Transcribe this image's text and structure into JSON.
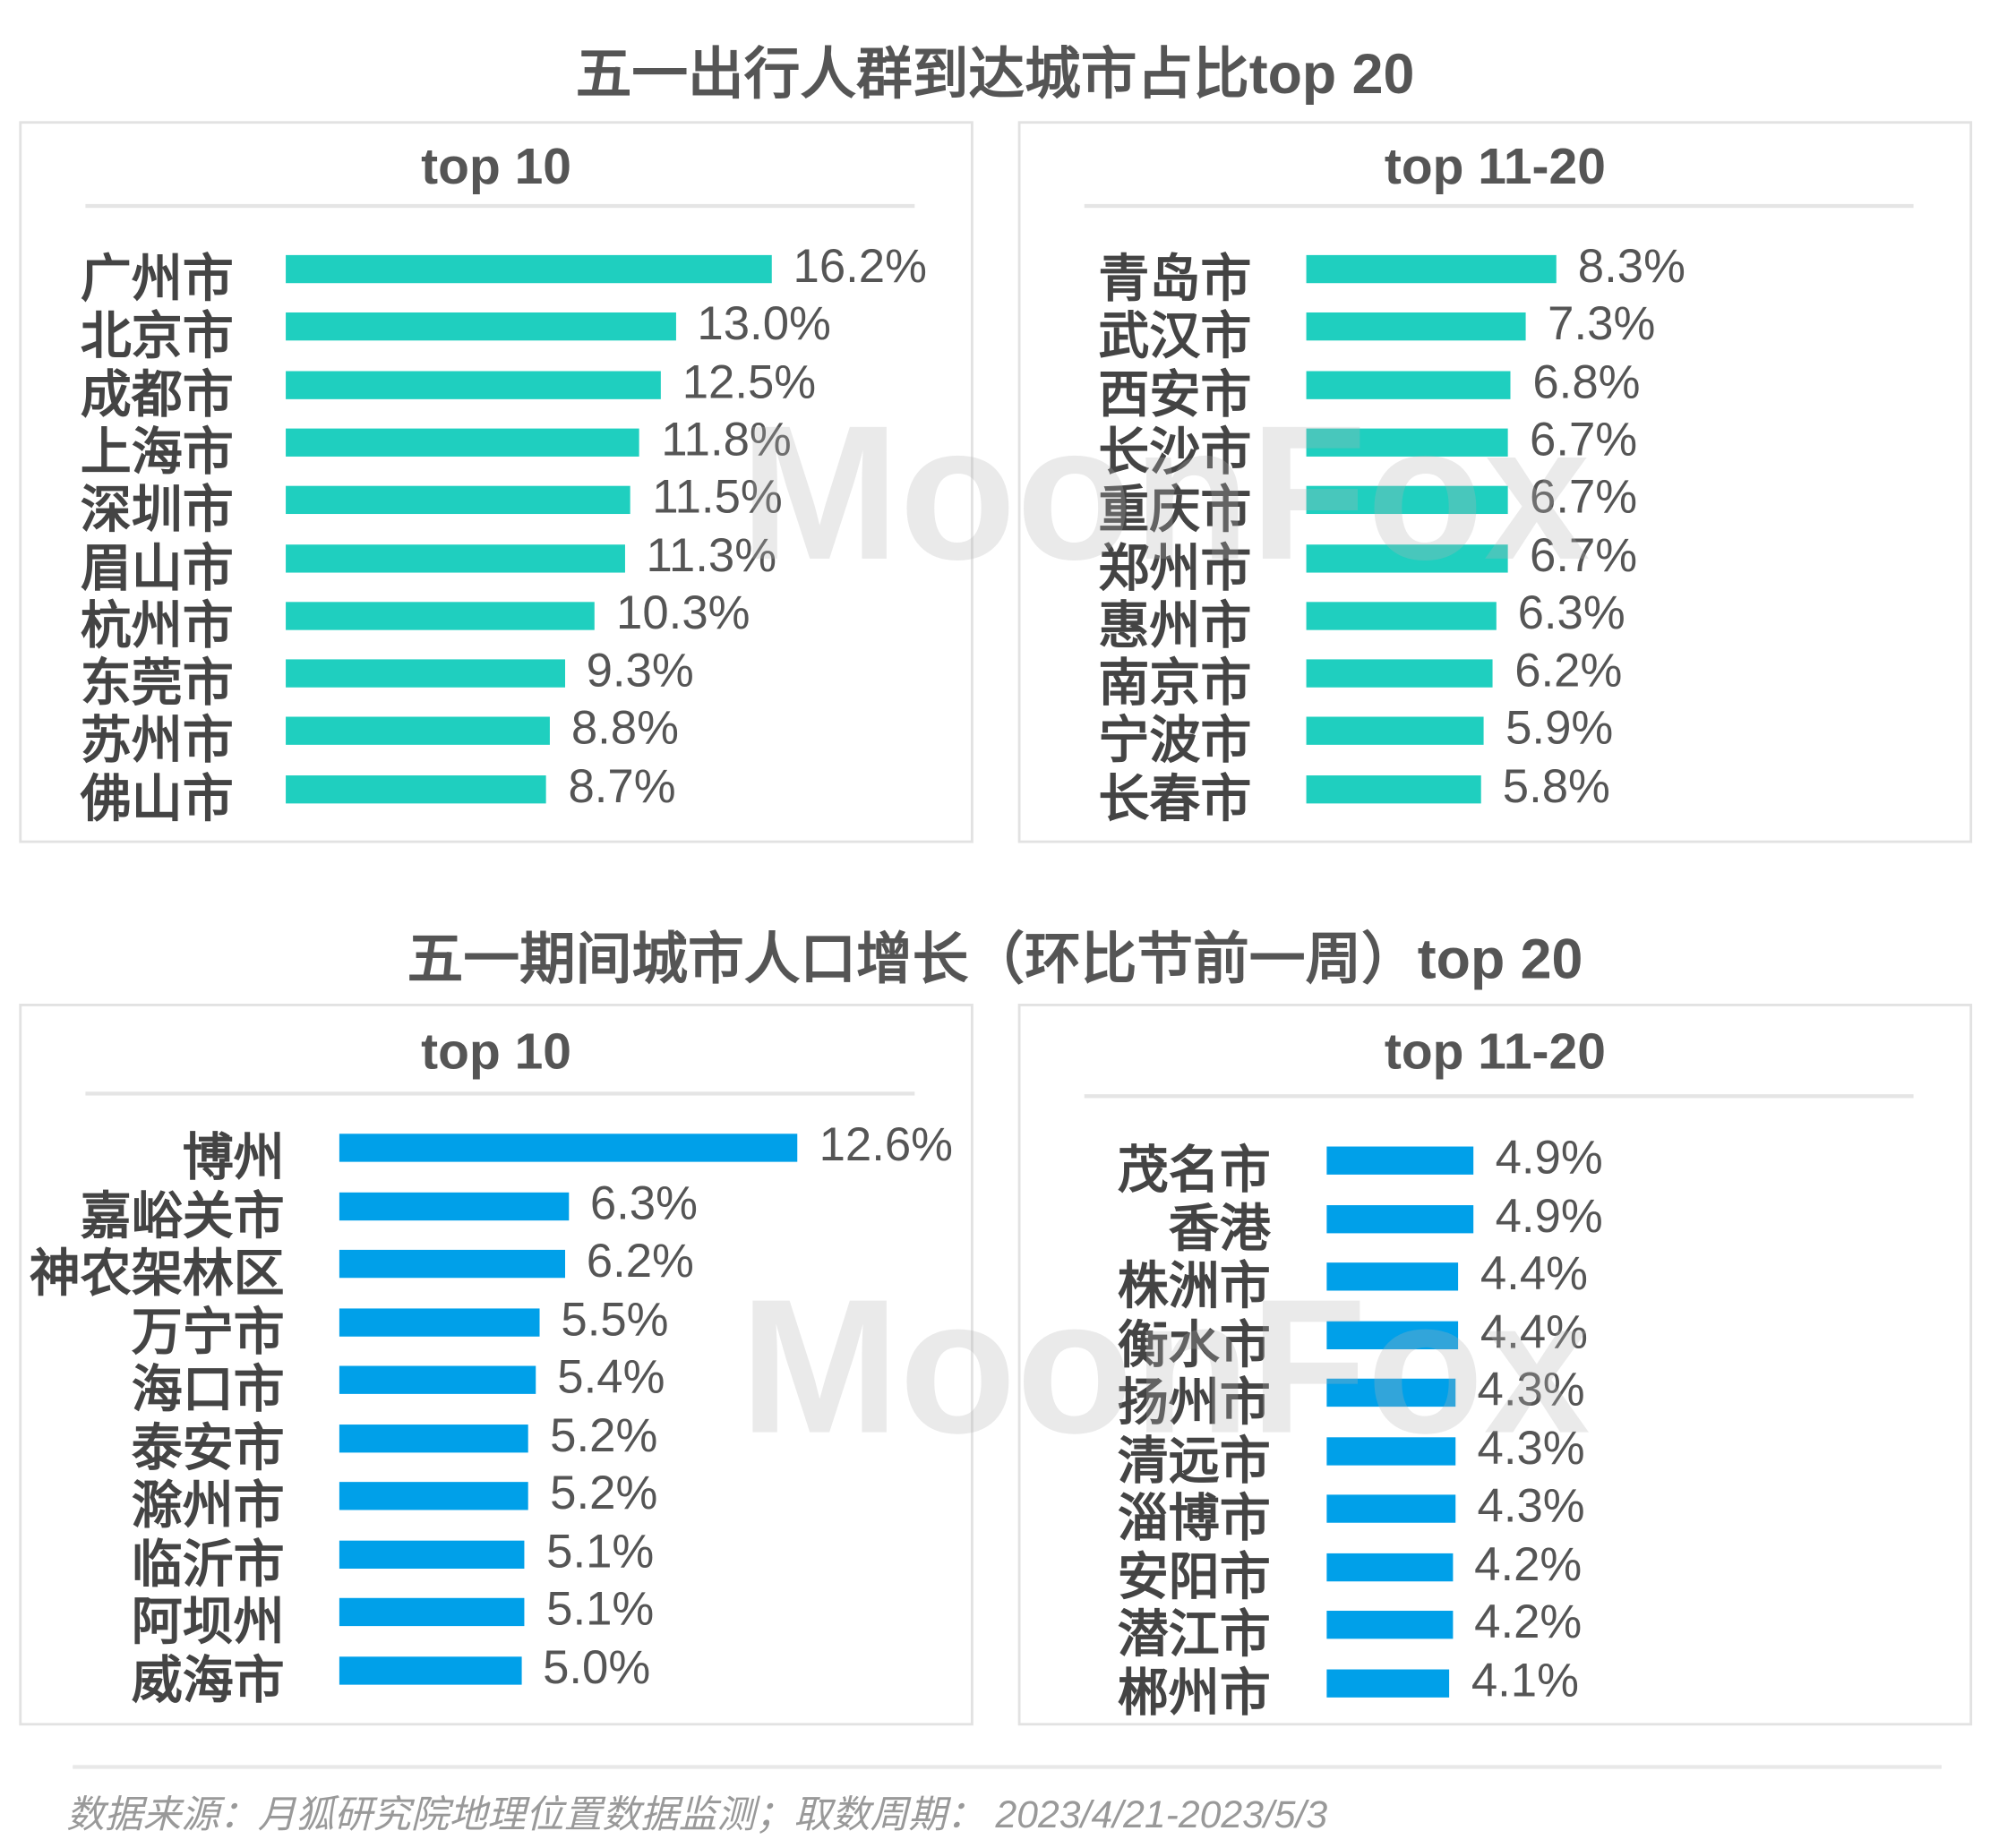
{
  "colors": {
    "teal": "#1fcfbf",
    "blue": "#00a0e9"
  },
  "watermark": "MoonFox",
  "section1": {
    "title": "五一出行人群到达城市占比top 20"
  },
  "section2": {
    "title": "五一期间城市人口增长（环比节前一周）top 20"
  },
  "footer": "数据来源：月狐研究院地理位置数据监测；取数周期： 2023/4/21-2023/5/3",
  "chart_data": [
    {
      "type": "bar",
      "orientation": "horizontal",
      "title": "top 10",
      "section": "五一出行人群到达城市占比top 20",
      "unit": "%",
      "categories": [
        "广州市",
        "北京市",
        "成都市",
        "上海市",
        "深圳市",
        "眉山市",
        "杭州市",
        "东莞市",
        "苏州市",
        "佛山市"
      ],
      "values": [
        16.2,
        13.0,
        12.5,
        11.8,
        11.5,
        11.3,
        10.3,
        9.3,
        8.8,
        8.7
      ],
      "labels": [
        "16.2%",
        "13.0%",
        "12.5%",
        "11.8%",
        "11.5%",
        "11.3%",
        "10.3%",
        "9.3%",
        "8.8%",
        "8.7%"
      ]
    },
    {
      "type": "bar",
      "orientation": "horizontal",
      "title": "top 11-20",
      "section": "五一出行人群到达城市占比top 20",
      "unit": "%",
      "categories": [
        "青岛市",
        "武汉市",
        "西安市",
        "长沙市",
        "重庆市",
        "郑州市",
        "惠州市",
        "南京市",
        "宁波市",
        "长春市"
      ],
      "values": [
        8.3,
        7.3,
        6.8,
        6.7,
        6.7,
        6.7,
        6.3,
        6.2,
        5.9,
        5.8
      ],
      "labels": [
        "8.3%",
        "7.3%",
        "6.8%",
        "6.7%",
        "6.7%",
        "6.7%",
        "6.3%",
        "6.2%",
        "5.9%",
        "5.8%"
      ]
    },
    {
      "type": "bar",
      "orientation": "horizontal",
      "title": "top 10",
      "section": "五一期间城市人口增长（环比节前一周）top 20",
      "unit": "%",
      "categories": [
        "博州",
        "嘉峪关市",
        "神农架林区",
        "万宁市",
        "海口市",
        "泰安市",
        "滁州市",
        "临沂市",
        "阿坝州",
        "威海市"
      ],
      "values": [
        12.6,
        6.3,
        6.2,
        5.5,
        5.4,
        5.2,
        5.2,
        5.1,
        5.1,
        5.0
      ],
      "labels": [
        "12.6%",
        "6.3%",
        "6.2%",
        "5.5%",
        "5.4%",
        "5.2%",
        "5.2%",
        "5.1%",
        "5.1%",
        "5.0%"
      ]
    },
    {
      "type": "bar",
      "orientation": "horizontal",
      "title": "top 11-20",
      "section": "五一期间城市人口增长（环比节前一周）top 20",
      "unit": "%",
      "categories": [
        "茂名市",
        "香港",
        "株洲市",
        "衡水市",
        "扬州市",
        "清远市",
        "淄博市",
        "安阳市",
        "潜江市",
        "郴州市"
      ],
      "values": [
        4.9,
        4.9,
        4.4,
        4.4,
        4.3,
        4.3,
        4.3,
        4.2,
        4.2,
        4.1
      ],
      "labels": [
        "4.9%",
        "4.9%",
        "4.4%",
        "4.4%",
        "4.3%",
        "4.3%",
        "4.3%",
        "4.2%",
        "4.2%",
        "4.1%"
      ]
    }
  ]
}
